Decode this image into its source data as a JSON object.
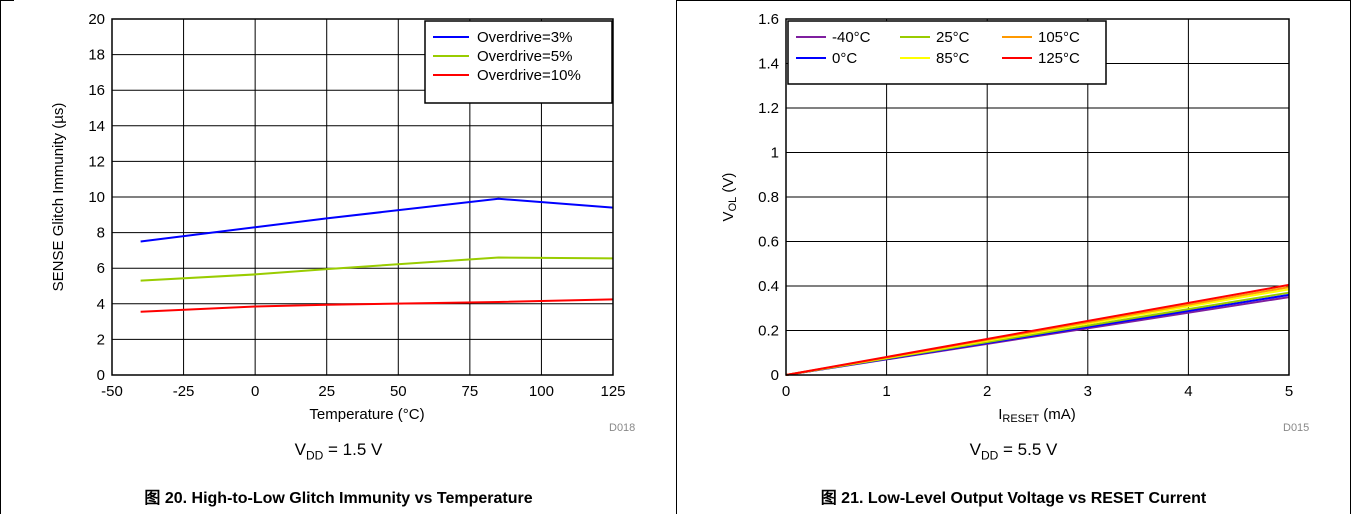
{
  "chart_data": [
    {
      "type": "line",
      "title": "",
      "xlabel": "Temperature (°C)",
      "ylabel": "SENSE Glitch Immunity (µs)",
      "xlim": [
        -50,
        125
      ],
      "ylim": [
        0,
        20
      ],
      "x_ticks": [
        "-50",
        "-25",
        "0",
        "25",
        "50",
        "75",
        "100",
        "125"
      ],
      "y_ticks": [
        "0",
        "2",
        "4",
        "6",
        "8",
        "10",
        "12",
        "14",
        "16",
        "18",
        "20"
      ],
      "x_tick_values": [
        -50,
        -25,
        0,
        25,
        50,
        75,
        100,
        125
      ],
      "y_tick_values": [
        0,
        2,
        4,
        6,
        8,
        10,
        12,
        14,
        16,
        18,
        20
      ],
      "grid": true,
      "legend_position": "top-right",
      "x": [
        -40,
        0,
        25,
        85,
        125
      ],
      "series": [
        {
          "name": "Overdrive=3%",
          "color": "#0000ff",
          "values": [
            7.5,
            8.3,
            8.8,
            9.9,
            9.4
          ]
        },
        {
          "name": "Overdrive=5%",
          "color": "#99cc00",
          "values": [
            5.3,
            5.65,
            5.95,
            6.6,
            6.55
          ]
        },
        {
          "name": "Overdrive=10%",
          "color": "#ff0000",
          "values": [
            3.55,
            3.85,
            3.95,
            4.1,
            4.25
          ]
        }
      ],
      "condition_main": "V",
      "condition_sub": "DD",
      "condition_rest": " = 1.5 V",
      "figure_code": "D018",
      "caption": "图 20. High-to-Low Glitch Immunity vs Temperature"
    },
    {
      "type": "line",
      "title": "",
      "xlabel_main": "I",
      "xlabel_sub": "RESET",
      "xlabel_rest": " (mA)",
      "ylabel_main": "V",
      "ylabel_sub": "OL",
      "ylabel_rest": " (V)",
      "xlim": [
        0,
        5
      ],
      "ylim": [
        0,
        1.6
      ],
      "x_ticks": [
        "0",
        "1",
        "2",
        "3",
        "4",
        "5"
      ],
      "y_ticks": [
        "0",
        "0.2",
        "0.4",
        "0.6",
        "0.8",
        "1",
        "1.2",
        "1.4",
        "1.6"
      ],
      "x_tick_values": [
        0,
        1,
        2,
        3,
        4,
        5
      ],
      "y_tick_values": [
        0,
        0.2,
        0.4,
        0.6,
        0.8,
        1,
        1.2,
        1.4,
        1.6
      ],
      "grid": true,
      "legend_position": "top-left",
      "x": [
        0,
        5
      ],
      "series": [
        {
          "name": "-40°C",
          "color": "#7f1f9f",
          "values": [
            0,
            0.35
          ]
        },
        {
          "name": "0°C",
          "color": "#0000ff",
          "values": [
            0,
            0.36
          ]
        },
        {
          "name": "25°C",
          "color": "#99cc00",
          "values": [
            0,
            0.37
          ]
        },
        {
          "name": "85°C",
          "color": "#ffff00",
          "values": [
            0,
            0.385
          ]
        },
        {
          "name": "105°C",
          "color": "#ff9900",
          "values": [
            0,
            0.395
          ]
        },
        {
          "name": "125°C",
          "color": "#ff0000",
          "values": [
            0,
            0.405
          ]
        }
      ],
      "condition_main": "V",
      "condition_sub": "DD",
      "condition_rest": " = 5.5 V",
      "figure_code": "D015",
      "caption": "图 21. Low-Level Output Voltage vs RESET Current"
    }
  ]
}
